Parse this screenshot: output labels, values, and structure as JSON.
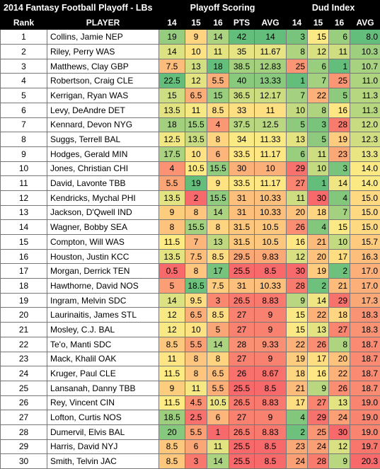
{
  "header": {
    "title": "2014 Fantasy Football Playoff - LBs",
    "playoff_scoring": "Playoff Scoring",
    "dud_index": "Dud Index",
    "columns": [
      "Rank",
      "PLAYER",
      "14",
      "15",
      "16",
      "PTS",
      "AVG",
      "14",
      "15",
      "16",
      "AVG"
    ]
  },
  "palette": {
    "green": "#63BE7B",
    "yellow": "#FFEB84",
    "red": "#F8696B"
  },
  "rows": [
    {
      "rank": "1",
      "player": "Collins, Jamie NEP",
      "w14": "19",
      "w15": "9",
      "w16": "14",
      "pts": "42",
      "avg": "14",
      "d14": "3",
      "d15": "15",
      "d16": "6",
      "davg": "8.0"
    },
    {
      "rank": "2",
      "player": "Riley, Perry WAS",
      "w14": "14",
      "w15": "10",
      "w16": "11",
      "pts": "35",
      "avg": "11.67",
      "d14": "8",
      "d15": "12",
      "d16": "11",
      "davg": "10.3"
    },
    {
      "rank": "3",
      "player": "Matthews, Clay GBP",
      "w14": "7.5",
      "w15": "13",
      "w16": "18",
      "pts": "38.5",
      "avg": "12.83",
      "d14": "25",
      "d15": "6",
      "d16": "1",
      "davg": "10.7"
    },
    {
      "rank": "4",
      "player": "Robertson, Craig CLE",
      "w14": "22.5",
      "w15": "12",
      "w16": "5.5",
      "pts": "40",
      "avg": "13.33",
      "d14": "1",
      "d15": "7",
      "d16": "25",
      "davg": "11.0"
    },
    {
      "rank": "5",
      "player": "Kerrigan, Ryan WAS",
      "w14": "15",
      "w15": "6.5",
      "w16": "15",
      "pts": "36.5",
      "avg": "12.17",
      "d14": "7",
      "d15": "22",
      "d16": "5",
      "davg": "11.3"
    },
    {
      "rank": "6",
      "player": "Levy, DeAndre DET",
      "w14": "13.5",
      "w15": "11",
      "w16": "8.5",
      "pts": "33",
      "avg": "11",
      "d14": "10",
      "d15": "8",
      "d16": "16",
      "davg": "11.3"
    },
    {
      "rank": "7",
      "player": "Kennard, Devon NYG",
      "w14": "18",
      "w15": "15.5",
      "w16": "4",
      "pts": "37.5",
      "avg": "12.5",
      "d14": "5",
      "d15": "3",
      "d16": "28",
      "davg": "12.0"
    },
    {
      "rank": "8",
      "player": "Suggs, Terrell BAL",
      "w14": "12.5",
      "w15": "13.5",
      "w16": "8",
      "pts": "34",
      "avg": "11.33",
      "d14": "13",
      "d15": "5",
      "d16": "19",
      "davg": "12.3"
    },
    {
      "rank": "9",
      "player": "Hodges, Gerald MIN",
      "w14": "17.5",
      "w15": "10",
      "w16": "6",
      "pts": "33.5",
      "avg": "11.17",
      "d14": "6",
      "d15": "11",
      "d16": "23",
      "davg": "13.3"
    },
    {
      "rank": "10",
      "player": "Jones, Christian CHI",
      "w14": "4",
      "w15": "10.5",
      "w16": "15.5",
      "pts": "30",
      "avg": "10",
      "d14": "29",
      "d15": "10",
      "d16": "3",
      "davg": "14.0"
    },
    {
      "rank": "11",
      "player": "David, Lavonte TBB",
      "w14": "5.5",
      "w15": "19",
      "w16": "9",
      "pts": "33.5",
      "avg": "11.17",
      "d14": "27",
      "d15": "1",
      "d16": "14",
      "davg": "14.0"
    },
    {
      "rank": "12",
      "player": "Kendricks, Mychal PHI",
      "w14": "13.5",
      "w15": "2",
      "w16": "15.5",
      "pts": "31",
      "avg": "10.33",
      "d14": "11",
      "d15": "30",
      "d16": "4",
      "davg": "15.0"
    },
    {
      "rank": "13",
      "player": "Jackson, D'Qwell IND",
      "w14": "9",
      "w15": "8",
      "w16": "14",
      "pts": "31",
      "avg": "10.33",
      "d14": "20",
      "d15": "18",
      "d16": "7",
      "davg": "15.0"
    },
    {
      "rank": "14",
      "player": "Wagner, Bobby SEA",
      "w14": "8",
      "w15": "15.5",
      "w16": "8",
      "pts": "31.5",
      "avg": "10.5",
      "d14": "26",
      "d15": "4",
      "d16": "15",
      "davg": "15.0"
    },
    {
      "rank": "15",
      "player": "Compton, Will WAS",
      "w14": "11.5",
      "w15": "7",
      "w16": "13",
      "pts": "31.5",
      "avg": "10.5",
      "d14": "16",
      "d15": "21",
      "d16": "10",
      "davg": "15.7"
    },
    {
      "rank": "16",
      "player": "Houston, Justin KCC",
      "w14": "13.5",
      "w15": "7.5",
      "w16": "8.5",
      "pts": "29.5",
      "avg": "9.83",
      "d14": "12",
      "d15": "20",
      "d16": "17",
      "davg": "16.3"
    },
    {
      "rank": "17",
      "player": "Morgan, Derrick TEN",
      "w14": "0.5",
      "w15": "8",
      "w16": "17",
      "pts": "25.5",
      "avg": "8.5",
      "d14": "30",
      "d15": "19",
      "d16": "2",
      "davg": "17.0"
    },
    {
      "rank": "18",
      "player": "Hawthorne, David NOS",
      "w14": "5",
      "w15": "18.5",
      "w16": "7.5",
      "pts": "31",
      "avg": "10.33",
      "d14": "28",
      "d15": "2",
      "d16": "21",
      "davg": "17.0"
    },
    {
      "rank": "19",
      "player": "Ingram, Melvin SDC",
      "w14": "14",
      "w15": "9.5",
      "w16": "3",
      "pts": "26.5",
      "avg": "8.83",
      "d14": "9",
      "d15": "14",
      "d16": "29",
      "davg": "17.3"
    },
    {
      "rank": "20",
      "player": "Laurinaitis, James STL",
      "w14": "12",
      "w15": "6.5",
      "w16": "8.5",
      "pts": "27",
      "avg": "9",
      "d14": "15",
      "d15": "22",
      "d16": "18",
      "davg": "18.3"
    },
    {
      "rank": "21",
      "player": "Mosley, C.J. BAL",
      "w14": "12",
      "w15": "10",
      "w16": "5",
      "pts": "27",
      "avg": "9",
      "d14": "15",
      "d15": "13",
      "d16": "27",
      "davg": "18.3"
    },
    {
      "rank": "22",
      "player": "Te'o, Manti SDC",
      "w14": "8.5",
      "w15": "5.5",
      "w16": "14",
      "pts": "28",
      "avg": "9.33",
      "d14": "22",
      "d15": "26",
      "d16": "8",
      "davg": "18.7"
    },
    {
      "rank": "23",
      "player": "Mack, Khalil OAK",
      "w14": "11",
      "w15": "8",
      "w16": "8",
      "pts": "27",
      "avg": "9",
      "d14": "19",
      "d15": "17",
      "d16": "20",
      "davg": "18.7"
    },
    {
      "rank": "24",
      "player": "Kruger, Paul CLE",
      "w14": "11.5",
      "w15": "8",
      "w16": "6.5",
      "pts": "26",
      "avg": "8.67",
      "d14": "18",
      "d15": "16",
      "d16": "22",
      "davg": "18.7"
    },
    {
      "rank": "25",
      "player": "Lansanah, Danny TBB",
      "w14": "9",
      "w15": "11",
      "w16": "5.5",
      "pts": "25.5",
      "avg": "8.5",
      "d14": "21",
      "d15": "9",
      "d16": "26",
      "davg": "18.7"
    },
    {
      "rank": "26",
      "player": "Rey, Vincent CIN",
      "w14": "11.5",
      "w15": "4.5",
      "w16": "10.5",
      "pts": "26.5",
      "avg": "8.83",
      "d14": "17",
      "d15": "27",
      "d16": "13",
      "davg": "19.0"
    },
    {
      "rank": "27",
      "player": "Lofton, Curtis NOS",
      "w14": "18.5",
      "w15": "2.5",
      "w16": "6",
      "pts": "27",
      "avg": "9",
      "d14": "4",
      "d15": "29",
      "d16": "24",
      "davg": "19.0"
    },
    {
      "rank": "28",
      "player": "Dumervil, Elvis BAL",
      "w14": "20",
      "w15": "5.5",
      "w16": "1",
      "pts": "26.5",
      "avg": "8.83",
      "d14": "2",
      "d15": "25",
      "d16": "30",
      "davg": "19.0"
    },
    {
      "rank": "29",
      "player": "Harris, David NYJ",
      "w14": "8.5",
      "w15": "6",
      "w16": "11",
      "pts": "25.5",
      "avg": "8.5",
      "d14": "23",
      "d15": "24",
      "d16": "12",
      "davg": "19.7"
    },
    {
      "rank": "30",
      "player": "Smith, Telvin JAC",
      "w14": "8.5",
      "w15": "3",
      "w16": "14",
      "pts": "25.5",
      "avg": "8.5",
      "d14": "24",
      "d15": "28",
      "d16": "9",
      "davg": "20.3"
    }
  ]
}
